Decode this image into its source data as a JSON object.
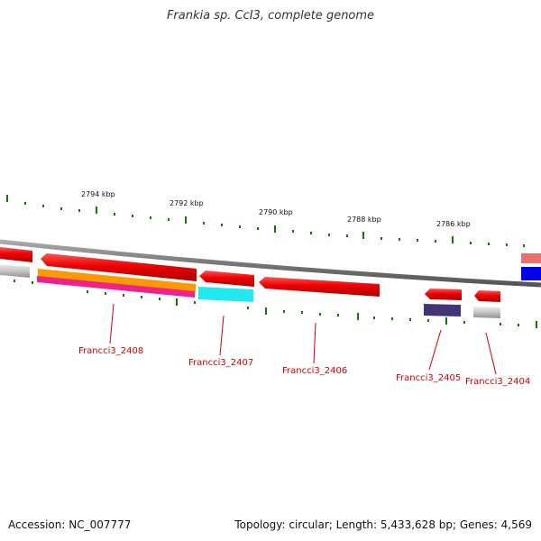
{
  "title": "Frankia sp. CcI3, complete genome",
  "footer": {
    "accession": "Accession: NC_007777",
    "summary": "Topology: circular; Length: 5,433,628 bp; Genes: 4,569"
  },
  "scale": {
    "ticks": [
      {
        "label": "2794 kbp"
      },
      {
        "label": "2792 kbp"
      },
      {
        "label": "2790 kbp"
      },
      {
        "label": "2788 kbp"
      },
      {
        "label": "2786 kbp"
      }
    ]
  },
  "genes": [
    {
      "label": "Francci3_2408"
    },
    {
      "label": "Francci3_2407"
    },
    {
      "label": "Francci3_2406"
    },
    {
      "label": "Francci3_2405"
    },
    {
      "label": "Francci3_2404"
    }
  ],
  "colors": {
    "backbone": "#8a8a8a",
    "gene_red": "#ee0000",
    "orange": "#ff9900",
    "magenta": "#ee2288",
    "cyan": "#22e8f0",
    "navy": "#443377",
    "gray": "#b8b8b8",
    "blue": "#0000ee",
    "pink": "#e87070",
    "tick_green": "#117700",
    "label_red": "#cc0000"
  }
}
